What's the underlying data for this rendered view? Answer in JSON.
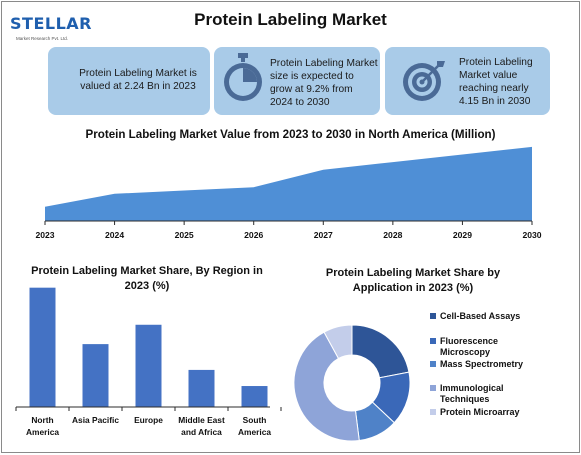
{
  "header": {
    "logo_text": "STELLAR",
    "logo_subtext": "Market Research Pvt. Ltd.",
    "title": "Protein Labeling Market"
  },
  "cards": [
    {
      "text": "Protein Labeling Market is valued at 2.24 Bn in 2023",
      "icon": "document-icon"
    },
    {
      "text": "Protein Labeling Market size is expected to grow at 9.2% from 2024 to 2030",
      "icon": "stopwatch-icon"
    },
    {
      "text": "Protein Labeling Market value reaching nearly 4.15 Bn in 2030",
      "icon": "target-icon"
    }
  ],
  "colors": {
    "card_bg": "#a9cbe8",
    "area_fill": "#4f8fd6",
    "bar_fill": "#4472c4",
    "pie": [
      "#2e5597",
      "#3a68b8",
      "#4f82c8",
      "#8ea4d8",
      "#c3cdea"
    ]
  },
  "chart_data": [
    {
      "type": "area",
      "title": "Protein Labeling Market Value from 2023 to 2030 in North America (Million)",
      "x": [
        "2023",
        "2024",
        "2025",
        "2026",
        "2027",
        "2028",
        "2029",
        "2030"
      ],
      "values": [
        13,
        25,
        28,
        31,
        47,
        54,
        61,
        68
      ],
      "ylim": [
        0,
        100
      ],
      "grid": false,
      "legend": false
    },
    {
      "type": "bar",
      "title": "Protein Labeling Market Share, By Region in 2023 (%)",
      "categories": [
        "North America",
        "Asia Pacific",
        "Europe",
        "Middle East and Africa",
        "South America"
      ],
      "values": [
        37,
        19.5,
        25.5,
        11.5,
        6.5
      ],
      "ylim": [
        0,
        40
      ],
      "grid": false,
      "legend": false
    },
    {
      "type": "pie",
      "title": "Protein Labeling Market Share by Application in 2023 (%)",
      "categories": [
        "Cell-Based Assays",
        "Fluorescence Microscopy",
        "Mass Spectrometry",
        "Immunological Techniques",
        "Protein Microarray"
      ],
      "values": [
        22,
        15,
        11,
        44,
        8
      ],
      "donut": true,
      "legend": "right"
    }
  ]
}
